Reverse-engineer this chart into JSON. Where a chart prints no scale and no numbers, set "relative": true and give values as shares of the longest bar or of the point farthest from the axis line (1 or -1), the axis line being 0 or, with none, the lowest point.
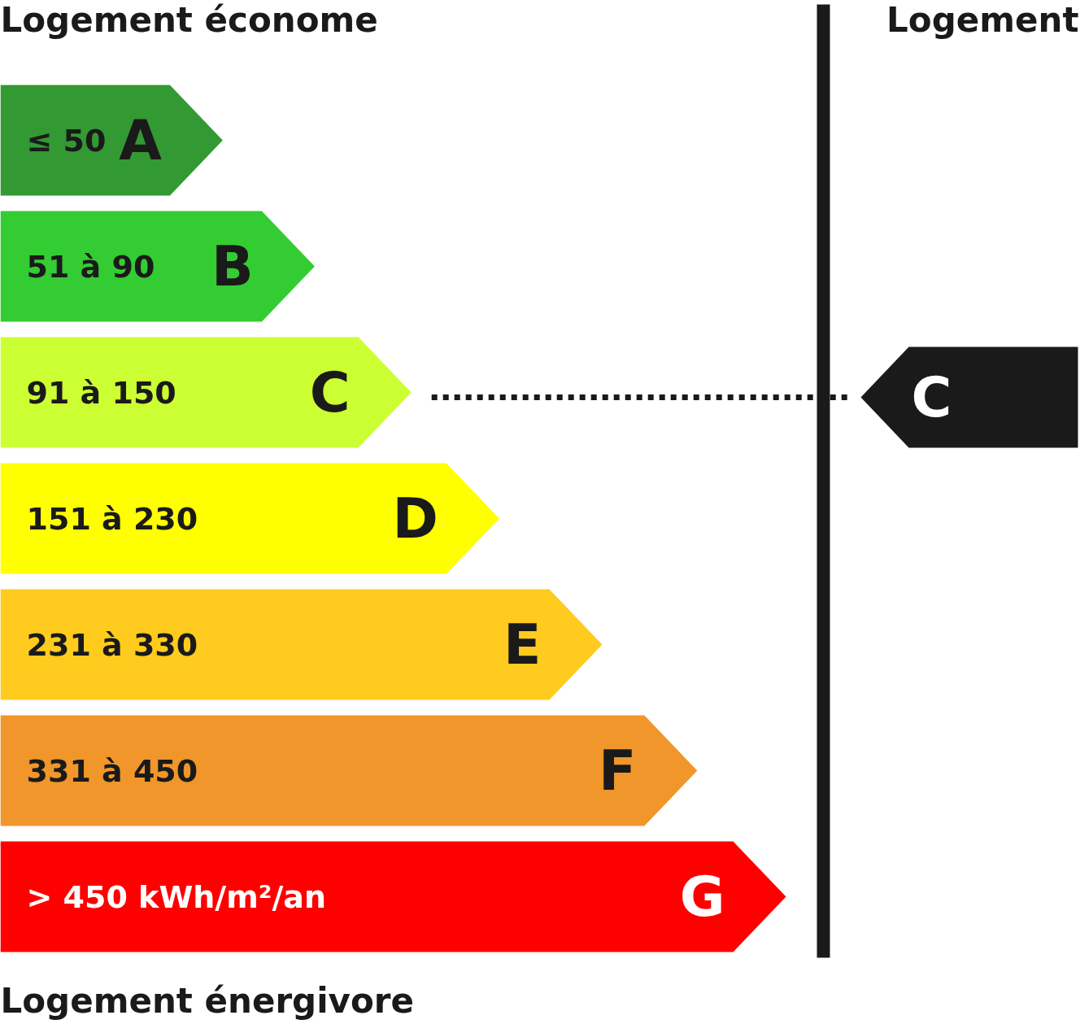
{
  "chart_data": {
    "type": "bar",
    "orientation": "horizontal",
    "relative": true,
    "categories": [
      "A",
      "B",
      "C",
      "D",
      "E",
      "F",
      "G"
    ],
    "values": [
      0.283,
      0.4,
      0.523,
      0.635,
      0.766,
      0.887,
      1
    ],
    "colors": [
      "#339933",
      "#33cc33",
      "#ccff33",
      "#ffff00",
      "#fecb1e",
      "#f0962a",
      "#ff0000"
    ],
    "annotations": [
      "Logement économe",
      "Logement",
      "Logement énergivore",
      "≤ 50",
      "51 à 90",
      "91 à 150",
      "151 à 230",
      "231 à 330",
      "331 à 450",
      "> 450 kWh/m²/an",
      "C"
    ]
  }
}
